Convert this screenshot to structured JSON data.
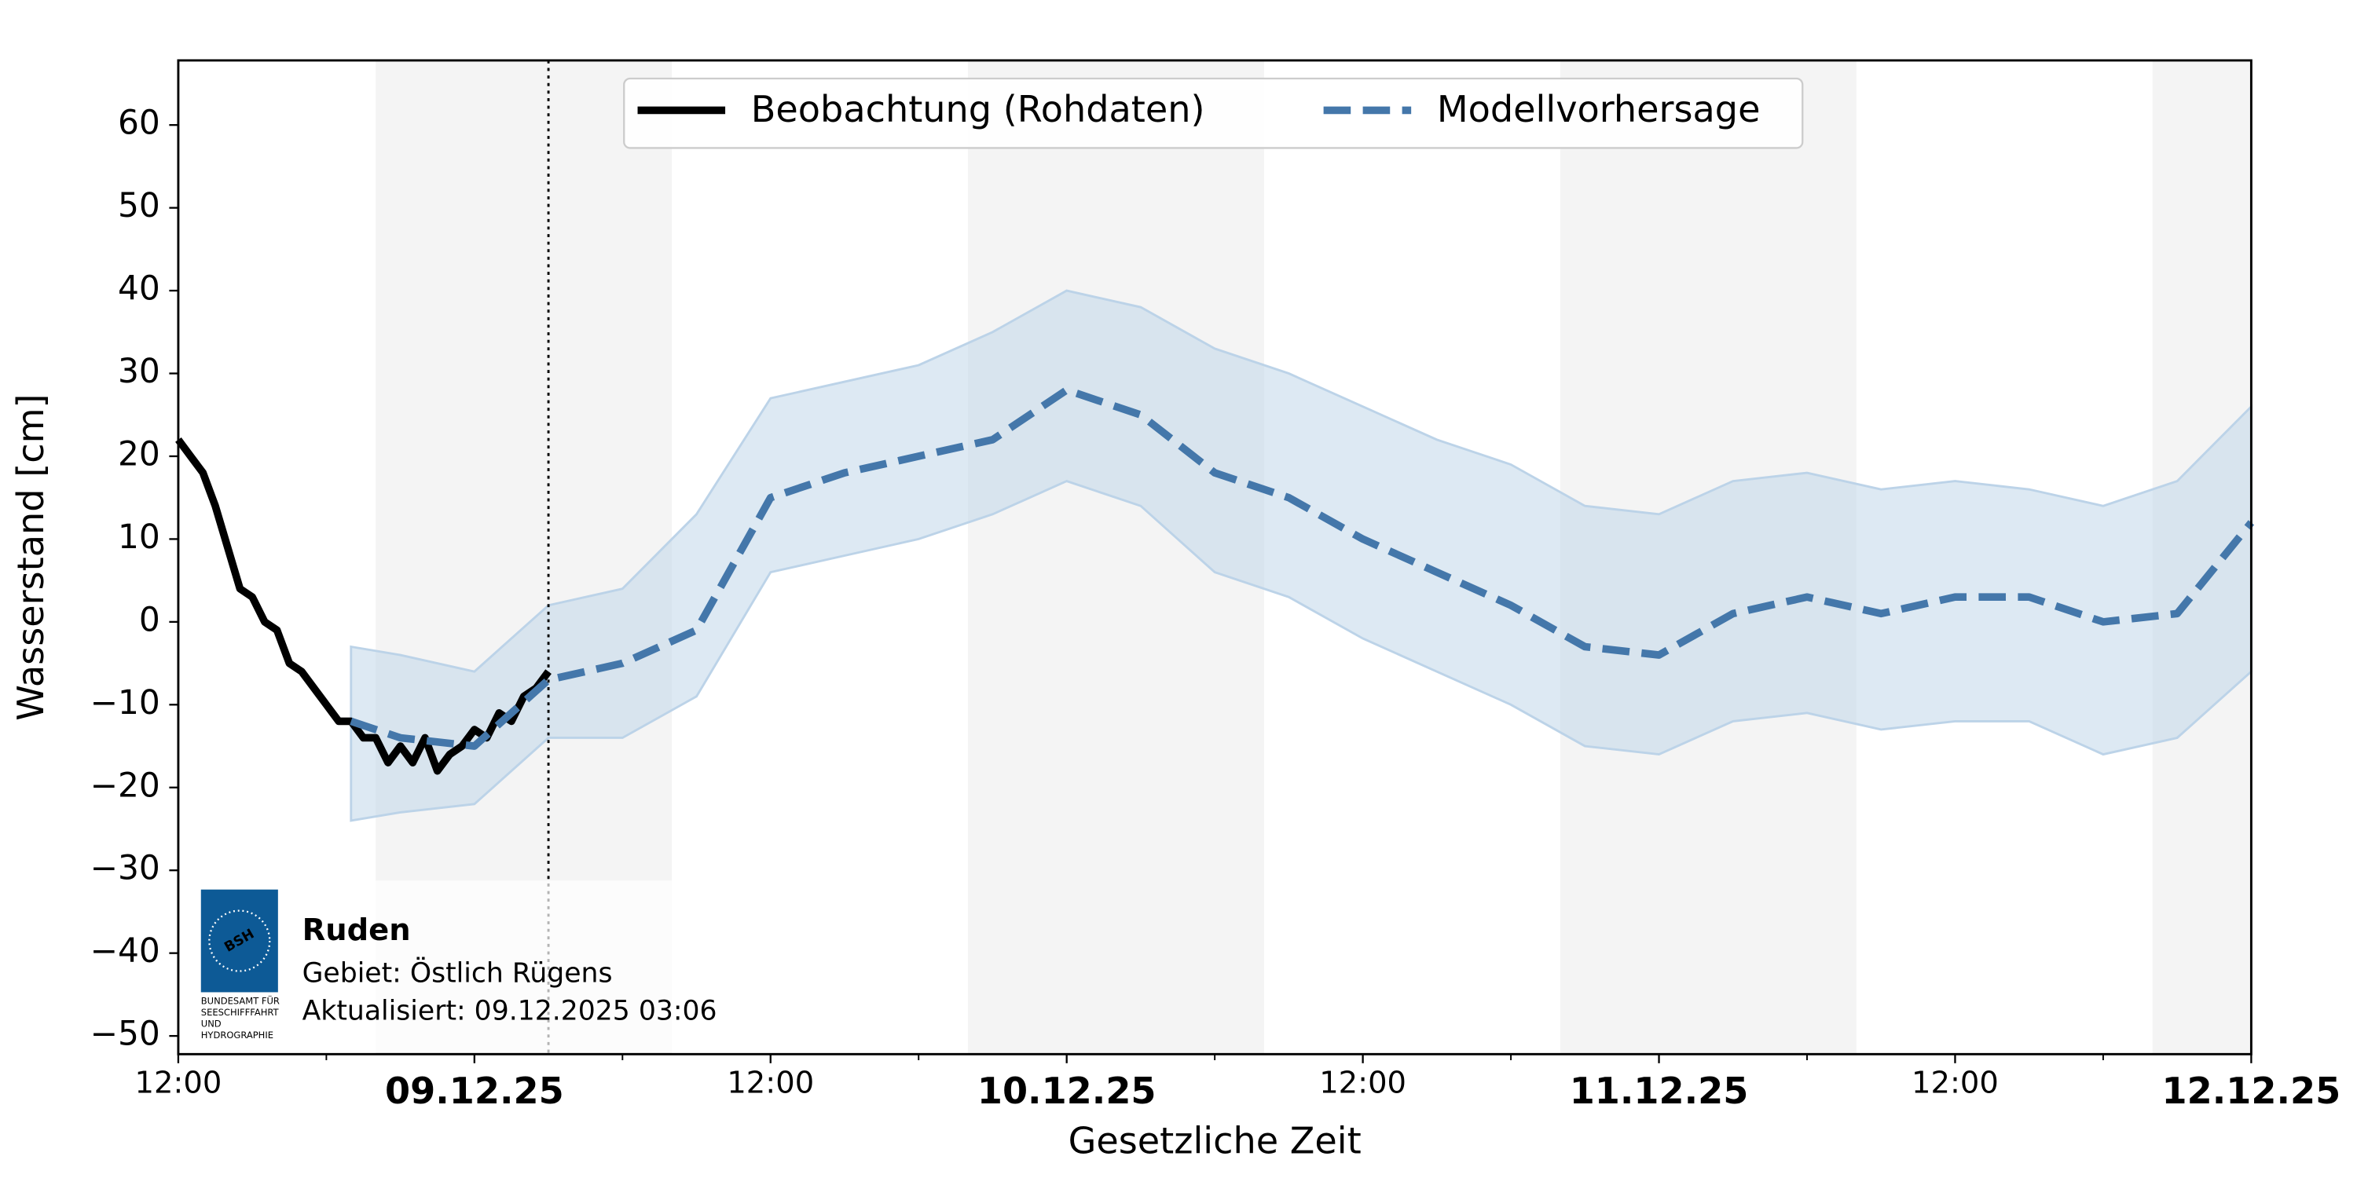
{
  "chart_data": {
    "type": "line",
    "y_label": "Wasserstand [cm]",
    "x_label": "Gesetzliche Zeit",
    "ylim": [
      -52.2,
      67.8
    ],
    "yticks": [
      {
        "value": -50,
        "label": "−50"
      },
      {
        "value": -40,
        "label": "−40"
      },
      {
        "value": -30,
        "label": "−30"
      },
      {
        "value": -20,
        "label": "−20"
      },
      {
        "value": -10,
        "label": "−10"
      },
      0,
      10,
      20,
      30,
      40,
      50,
      60
    ],
    "xlim": [
      "2025-12-08T12:00",
      "2025-12-12T00:00"
    ],
    "xticks": [
      {
        "value": "2025-12-08T12:00",
        "label": "12:00"
      },
      {
        "value": "2025-12-09T00:00",
        "label": "09.12.25"
      },
      {
        "value": "2025-12-09T12:00",
        "label": "12:00"
      },
      {
        "value": "2025-12-10T00:00",
        "label": "10.12.25"
      },
      {
        "value": "2025-12-10T12:00",
        "label": "12:00"
      },
      {
        "value": "2025-12-11T00:00",
        "label": "11.12.25"
      },
      {
        "value": "2025-12-11T12:00",
        "label": "12:00"
      },
      {
        "value": "2025-12-12T00:00",
        "label": "12.12.25"
      }
    ],
    "xticks_minor": [
      "2025-12-08T18:00",
      "2025-12-09T06:00",
      "2025-12-09T18:00",
      "2025-12-10T06:00",
      "2025-12-10T18:00",
      "2025-12-11T06:00",
      "2025-12-11T18:00"
    ],
    "grid": true,
    "shaded_periods": [
      [
        "2025-12-08T20:00",
        "2025-12-09T08:00"
      ],
      [
        "2025-12-09T20:00",
        "2025-12-10T08:00"
      ],
      [
        "2025-12-10T20:00",
        "2025-12-11T08:00"
      ],
      [
        "2025-12-11T20:00",
        "2025-12-12T00:00"
      ]
    ],
    "now": "2025-12-09T03:00",
    "legend_position": "upper center",
    "series": [
      {
        "name": "Beobachtung (Rohdaten)",
        "color": "#000000",
        "x": [
          "2025-12-08T12:00",
          "2025-12-08T12:30",
          "2025-12-08T13:00",
          "2025-12-08T13:30",
          "2025-12-08T14:00",
          "2025-12-08T14:30",
          "2025-12-08T15:00",
          "2025-12-08T15:30",
          "2025-12-08T16:00",
          "2025-12-08T16:30",
          "2025-12-08T17:00",
          "2025-12-08T17:30",
          "2025-12-08T18:00",
          "2025-12-08T18:30",
          "2025-12-08T19:00",
          "2025-12-08T19:30",
          "2025-12-08T20:00",
          "2025-12-08T20:30",
          "2025-12-08T21:00",
          "2025-12-08T21:30",
          "2025-12-08T22:00",
          "2025-12-08T22:30",
          "2025-12-08T23:00",
          "2025-12-08T23:30",
          "2025-12-09T00:00",
          "2025-12-09T00:30",
          "2025-12-09T01:00",
          "2025-12-09T01:30",
          "2025-12-09T02:00",
          "2025-12-09T02:30",
          "2025-12-09T03:00"
        ],
        "values": [
          22,
          20,
          18,
          14,
          9,
          4,
          3,
          0,
          -1,
          -5,
          -6,
          -8,
          -10,
          -12,
          -12,
          -14,
          -14,
          -17,
          -15,
          -17,
          -14,
          -18,
          -16,
          -15,
          -13,
          -14,
          -11,
          -12,
          -9,
          -8,
          -6
        ]
      },
      {
        "name": "Modellvorhersage",
        "color": "#4477aa",
        "band_color": "#bcd3e8",
        "x": [
          "2025-12-08T19:00",
          "2025-12-08T21:00",
          "2025-12-09T00:00",
          "2025-12-09T03:00",
          "2025-12-09T06:00",
          "2025-12-09T09:00",
          "2025-12-09T12:00",
          "2025-12-09T15:00",
          "2025-12-09T18:00",
          "2025-12-09T21:00",
          "2025-12-10T00:00",
          "2025-12-10T03:00",
          "2025-12-10T06:00",
          "2025-12-10T09:00",
          "2025-12-10T12:00",
          "2025-12-10T15:00",
          "2025-12-10T18:00",
          "2025-12-10T21:00",
          "2025-12-11T00:00",
          "2025-12-11T03:00",
          "2025-12-11T06:00",
          "2025-12-11T09:00",
          "2025-12-11T12:00",
          "2025-12-11T15:00",
          "2025-12-11T18:00",
          "2025-12-11T21:00",
          "2025-12-12T00:00"
        ],
        "values": [
          -12,
          -14,
          -15,
          -7,
          -5,
          -1,
          15,
          18,
          20,
          22,
          28,
          25,
          18,
          15,
          10,
          6,
          2,
          -3,
          -4,
          1,
          3,
          1,
          3,
          3,
          0,
          1,
          12
        ],
        "upper": [
          -3,
          -4,
          -6,
          2,
          4,
          13,
          27,
          29,
          31,
          35,
          40,
          38,
          33,
          30,
          26,
          22,
          19,
          14,
          13,
          17,
          18,
          16,
          17,
          16,
          14,
          17,
          26
        ],
        "lower": [
          -24,
          -23,
          -22,
          -14,
          -14,
          -9,
          6,
          8,
          10,
          13,
          17,
          14,
          6,
          3,
          -2,
          -6,
          -10,
          -15,
          -16,
          -12,
          -11,
          -13,
          -12,
          -12,
          -16,
          -14,
          -6
        ]
      }
    ],
    "info": {
      "station": "Ruden",
      "area": "Gebiet: Östlich Rügens",
      "updated": "Aktualisiert: 09.12.2025 03:06",
      "logo_text": "BSH",
      "logo_caption": [
        "BUNDESAMT FÜR",
        "SEESCHIFFFAHRT",
        "UND",
        "HYDROGRAPHIE"
      ]
    }
  }
}
